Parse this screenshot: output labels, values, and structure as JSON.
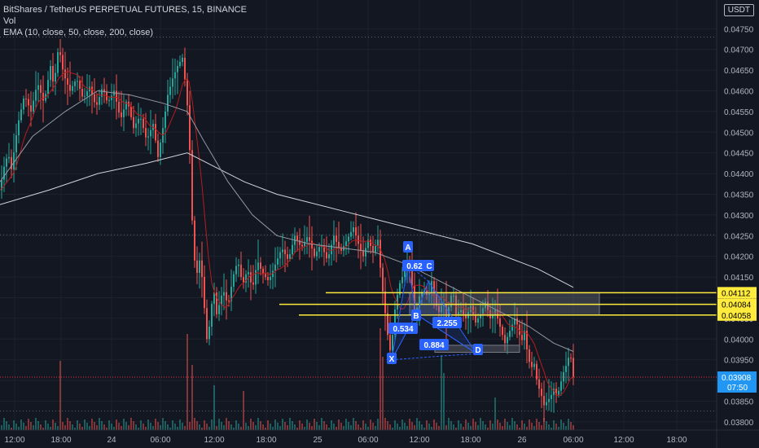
{
  "header": {
    "symbol_line": "BitShares / TetherUS PERPETUAL FUTURES, 15, BINANCE",
    "vol_label": "Vol",
    "ema_label": "EMA (10, close, 50, close, 200, close)"
  },
  "currency_badge": "USDT",
  "colors": {
    "background": "#131722",
    "up": "#26a69a",
    "down": "#ef5350",
    "ema10": "#b71c1c",
    "ema50": "#b2b5be",
    "ema200": "#d1d4dc",
    "level": "#ffeb3b",
    "pattern": "#2962ff",
    "last_price": "#2196f3"
  },
  "chart_data": {
    "type": "candlestick",
    "y_axis": {
      "min": 0.0378,
      "max": 0.0479,
      "ticks": [
        "0.04750",
        "0.04700",
        "0.04650",
        "0.04600",
        "0.04550",
        "0.04500",
        "0.04450",
        "0.04400",
        "0.04350",
        "0.04300",
        "0.04250",
        "0.04200",
        "0.04150",
        "0.04100",
        "0.04050",
        "0.04000",
        "0.03950",
        "0.03900",
        "0.03850",
        "0.03800"
      ]
    },
    "x_axis": {
      "ticks": [
        "12:00",
        "18:00",
        "24",
        "06:00",
        "12:00",
        "18:00",
        "25",
        "06:00",
        "12:00",
        "18:00",
        "26",
        "06:00",
        "12:00",
        "18:00"
      ]
    },
    "price_path": [
      [
        0,
        0.0436
      ],
      [
        4,
        0.0441
      ],
      [
        10,
        0.0445
      ],
      [
        14,
        0.0441
      ],
      [
        22,
        0.0452
      ],
      [
        30,
        0.0459
      ],
      [
        38,
        0.0455
      ],
      [
        46,
        0.0462
      ],
      [
        54,
        0.0457
      ],
      [
        62,
        0.0466
      ],
      [
        66,
        0.0461
      ],
      [
        72,
        0.0471
      ],
      [
        78,
        0.0464
      ],
      [
        86,
        0.046
      ],
      [
        94,
        0.0463
      ],
      [
        102,
        0.0458
      ],
      [
        110,
        0.0461
      ],
      [
        118,
        0.0456
      ],
      [
        126,
        0.0461
      ],
      [
        132,
        0.0457
      ],
      [
        140,
        0.046
      ],
      [
        148,
        0.0453
      ],
      [
        156,
        0.0458
      ],
      [
        164,
        0.0451
      ],
      [
        172,
        0.0454
      ],
      [
        180,
        0.0448
      ],
      [
        188,
        0.0452
      ],
      [
        194,
        0.0444
      ],
      [
        200,
        0.0451
      ],
      [
        206,
        0.0459
      ],
      [
        212,
        0.0463
      ],
      [
        218,
        0.0466
      ],
      [
        224,
        0.0468
      ],
      [
        228,
        0.0461
      ],
      [
        232,
        0.0452
      ],
      [
        235,
        0.0433
      ],
      [
        238,
        0.042
      ],
      [
        242,
        0.0416
      ],
      [
        246,
        0.042
      ],
      [
        250,
        0.041
      ],
      [
        254,
        0.04
      ],
      [
        258,
        0.0404
      ],
      [
        262,
        0.0413
      ],
      [
        266,
        0.0406
      ],
      [
        270,
        0.0409
      ],
      [
        274,
        0.0412
      ],
      [
        280,
        0.0408
      ],
      [
        286,
        0.0415
      ],
      [
        292,
        0.0419
      ],
      [
        298,
        0.0413
      ],
      [
        304,
        0.0417
      ],
      [
        310,
        0.0412
      ],
      [
        316,
        0.0419
      ],
      [
        322,
        0.0416
      ],
      [
        330,
        0.0414
      ],
      [
        338,
        0.0418
      ],
      [
        346,
        0.0422
      ],
      [
        354,
        0.0419
      ],
      [
        362,
        0.0425
      ],
      [
        370,
        0.0422
      ],
      [
        378,
        0.0425
      ],
      [
        386,
        0.042
      ],
      [
        394,
        0.0423
      ],
      [
        402,
        0.0419
      ],
      [
        410,
        0.0425
      ],
      [
        418,
        0.0421
      ],
      [
        426,
        0.0424
      ],
      [
        434,
        0.0427
      ],
      [
        440,
        0.0423
      ],
      [
        446,
        0.042
      ],
      [
        452,
        0.0424
      ],
      [
        458,
        0.0421
      ],
      [
        464,
        0.0424
      ],
      [
        468,
        0.0415
      ],
      [
        472,
        0.0408
      ],
      [
        476,
        0.0401
      ],
      [
        480,
        0.0396
      ],
      [
        484,
        0.0406
      ],
      [
        490,
        0.0413
      ],
      [
        496,
        0.0416
      ],
      [
        502,
        0.0419
      ],
      [
        506,
        0.0413
      ],
      [
        510,
        0.0405
      ],
      [
        514,
        0.041
      ],
      [
        520,
        0.0412
      ],
      [
        526,
        0.041
      ],
      [
        530,
        0.0414
      ],
      [
        536,
        0.0408
      ],
      [
        540,
        0.0406
      ],
      [
        544,
        0.041
      ],
      [
        548,
        0.0404
      ],
      [
        552,
        0.0409
      ],
      [
        556,
        0.0412
      ],
      [
        560,
        0.0406
      ],
      [
        566,
        0.0407
      ],
      [
        572,
        0.0405
      ],
      [
        578,
        0.0408
      ],
      [
        584,
        0.0404
      ],
      [
        590,
        0.0406
      ],
      [
        596,
        0.0409
      ],
      [
        602,
        0.0405
      ],
      [
        608,
        0.0407
      ],
      [
        614,
        0.0403
      ],
      [
        620,
        0.0399
      ],
      [
        626,
        0.0402
      ],
      [
        632,
        0.0405
      ],
      [
        636,
        0.0403
      ],
      [
        640,
        0.0399
      ],
      [
        644,
        0.0402
      ],
      [
        648,
        0.0396
      ],
      [
        652,
        0.0393
      ],
      [
        656,
        0.0394
      ],
      [
        660,
        0.0389
      ],
      [
        664,
        0.0387
      ],
      [
        668,
        0.0384
      ],
      [
        672,
        0.0385
      ],
      [
        676,
        0.0386
      ],
      [
        680,
        0.0388
      ],
      [
        684,
        0.0386
      ],
      [
        688,
        0.0389
      ],
      [
        692,
        0.0392
      ],
      [
        696,
        0.0394
      ],
      [
        700,
        0.0397
      ],
      [
        704,
        0.03908
      ]
    ],
    "ema50": [
      [
        0,
        0.0438
      ],
      [
        40,
        0.0449
      ],
      [
        80,
        0.0455
      ],
      [
        120,
        0.046
      ],
      [
        160,
        0.0459
      ],
      [
        200,
        0.0457
      ],
      [
        230,
        0.0455
      ],
      [
        250,
        0.0448
      ],
      [
        280,
        0.0438
      ],
      [
        310,
        0.043
      ],
      [
        340,
        0.0425
      ],
      [
        380,
        0.0423
      ],
      [
        420,
        0.0422
      ],
      [
        460,
        0.0421
      ],
      [
        500,
        0.0418
      ],
      [
        540,
        0.0414
      ],
      [
        580,
        0.041
      ],
      [
        620,
        0.0406
      ],
      [
        650,
        0.0403
      ],
      [
        680,
        0.0399
      ],
      [
        704,
        0.0397
      ]
    ],
    "ema200": [
      [
        0,
        0.04325
      ],
      [
        60,
        0.0436
      ],
      [
        120,
        0.044
      ],
      [
        180,
        0.04425
      ],
      [
        230,
        0.0445
      ],
      [
        260,
        0.0442
      ],
      [
        300,
        0.0438
      ],
      [
        340,
        0.0435
      ],
      [
        380,
        0.0433
      ],
      [
        420,
        0.0431
      ],
      [
        460,
        0.0429
      ],
      [
        500,
        0.0427
      ],
      [
        540,
        0.0425
      ],
      [
        580,
        0.0423
      ],
      [
        620,
        0.042
      ],
      [
        660,
        0.0417
      ],
      [
        704,
        0.04125
      ]
    ],
    "levels": [
      {
        "value": 0.04112,
        "label": "0.04112",
        "from": 400
      },
      {
        "value": 0.04084,
        "label": "0.04084",
        "from": 343
      },
      {
        "value": 0.04058,
        "label": "0.04058",
        "from": 367
      }
    ],
    "last_price": {
      "value": 0.03908,
      "label": "0.03908",
      "countdown": "07:50"
    },
    "pattern_points": [
      {
        "label": "X",
        "value": 0.0395
      },
      {
        "label": "A",
        "value": 0.0418
      },
      {
        "label": "B",
        "value": 0.0406
      },
      {
        "label": "C",
        "value": 0.0414
      },
      {
        "label": "D",
        "value": 0.03965
      }
    ],
    "ratio_labels": [
      "0.62",
      "0.534",
      "2.255",
      "0.884"
    ]
  }
}
